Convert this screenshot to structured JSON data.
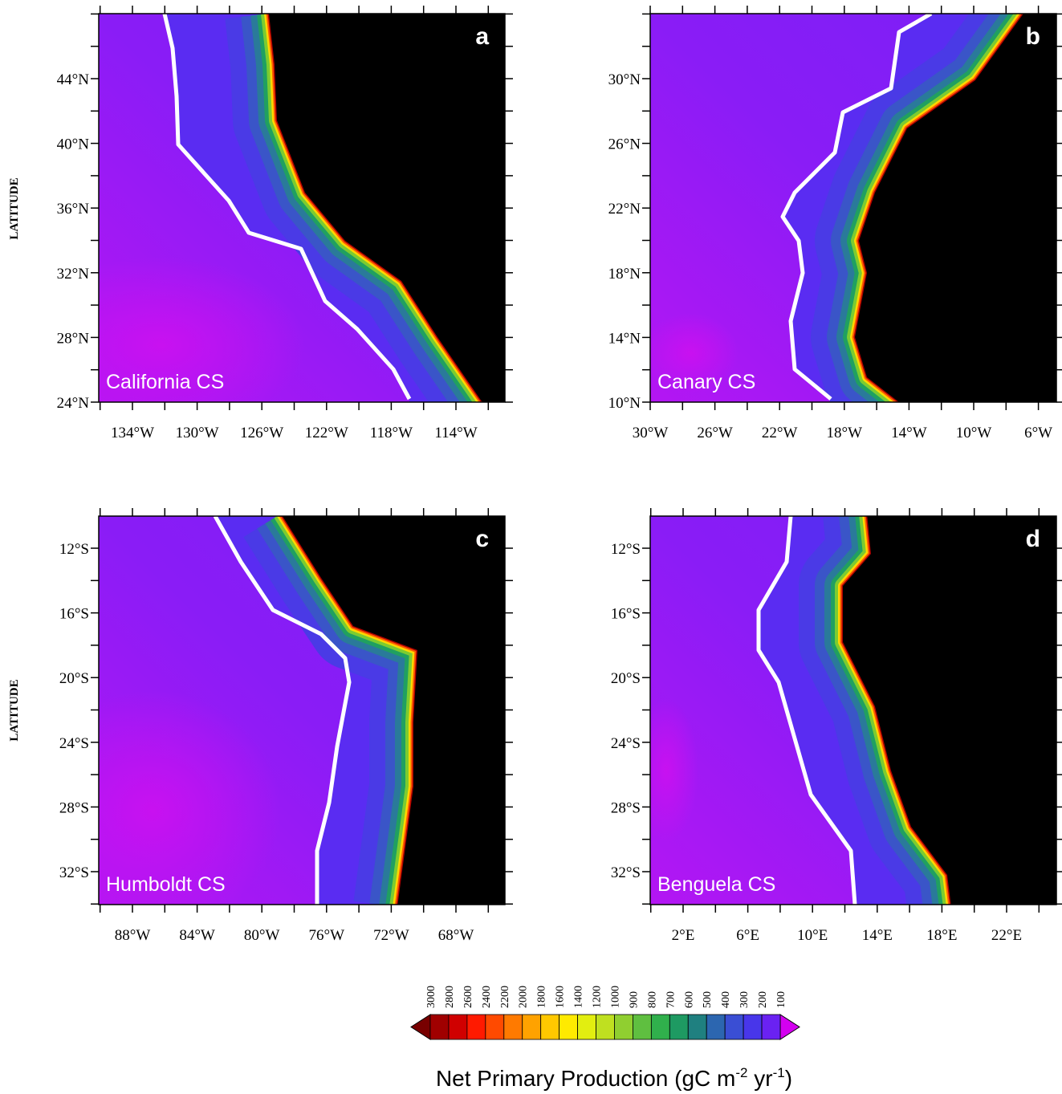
{
  "panels": [
    {
      "letter": "a",
      "name": "California CS",
      "lat_labels": [
        "44°N",
        "40°N",
        "36°N",
        "32°N",
        "28°N",
        "24°N"
      ],
      "lon_labels": [
        "134°W",
        "130°W",
        "126°W",
        "122°W",
        "118°W",
        "114°W"
      ]
    },
    {
      "letter": "b",
      "name": "Canary CS",
      "lat_labels": [
        "30°N",
        "26°N",
        "22°N",
        "18°N",
        "14°N",
        "10°N"
      ],
      "lon_labels": [
        "30°W",
        "26°W",
        "22°W",
        "18°W",
        "14°W",
        "10°W",
        "6°W"
      ]
    },
    {
      "letter": "c",
      "name": "Humboldt CS",
      "lat_labels": [
        "12°S",
        "16°S",
        "20°S",
        "24°S",
        "28°S",
        "32°S"
      ],
      "lon_labels": [
        "88°W",
        "84°W",
        "80°W",
        "76°W",
        "72°W",
        "68°W"
      ]
    },
    {
      "letter": "d",
      "name": "Benguela CS",
      "lat_labels": [
        "12°S",
        "16°S",
        "20°S",
        "24°S",
        "28°S",
        "32°S"
      ],
      "lon_labels": [
        "2°E",
        "6°E",
        "10°E",
        "14°E",
        "18°E",
        "22°E"
      ]
    }
  ],
  "y_axis_label": "LATITUDE",
  "colorbar": {
    "labels": [
      "3000",
      "2800",
      "2600",
      "2400",
      "2200",
      "2000",
      "1800",
      "1600",
      "1400",
      "1200",
      "1000",
      "900",
      "800",
      "700",
      "600",
      "500",
      "400",
      "300",
      "200",
      "100"
    ],
    "title": {
      "text": "Net Primary Production (gC m",
      "sup1": "-2",
      "mid": " yr",
      "sup2": "-1",
      "end": ")"
    }
  }
}
